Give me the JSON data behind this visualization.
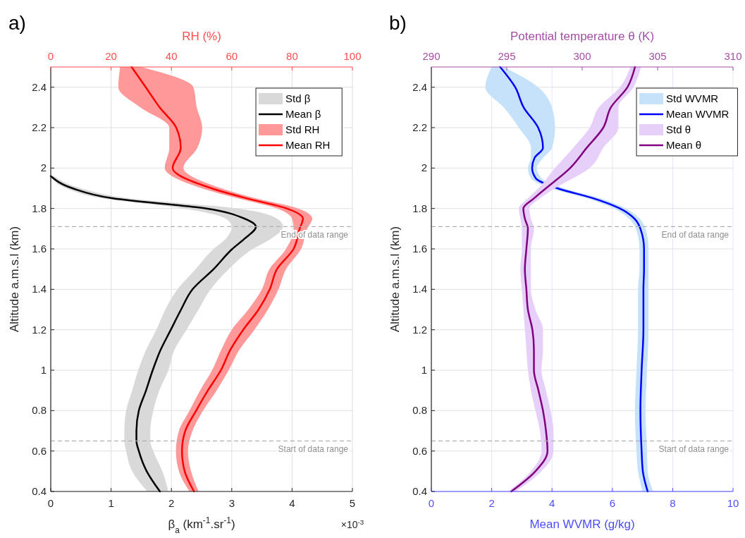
{
  "chart_data": [
    {
      "type": "line",
      "title": "a)",
      "orientation": "horizontal",
      "xlabel": "β$_{a}$ (km$^{-1}$.sr$^{-1}$)",
      "x2label": "RH (%)",
      "ylabel": "Altitude a.m.s.l (km)",
      "xlim": [
        0,
        5
      ],
      "xticks": [
        0,
        1,
        2,
        3,
        4,
        5
      ],
      "x2lim": [
        0,
        100
      ],
      "x2ticks": [
        0,
        20,
        40,
        60,
        80,
        100
      ],
      "ylim": [
        0.4,
        2.5
      ],
      "yticks": [
        0.4,
        0.6,
        0.8,
        1,
        1.2,
        1.4,
        1.6,
        1.8,
        2,
        2.2,
        2.4
      ],
      "grid": true,
      "legend": "top right",
      "annotations": [
        "×10$^{-3}$"
      ],
      "ref_lines": [
        {
          "axis": "y",
          "value": 1.71,
          "label": "End of data range",
          "color": "#b0b0b0",
          "line_style": "dashed"
        },
        {
          "axis": "y",
          "value": 0.65,
          "label": "Start of data range",
          "color": "#b0b0b0",
          "line_style": "dashed"
        }
      ],
      "series": [
        {
          "type": "area",
          "name": "Std β",
          "color": "#d9d9d9"
        },
        {
          "type": "line",
          "name": "Mean β",
          "color": "#000000",
          "x": [
            0.4,
            0.5,
            0.6,
            0.65,
            0.7,
            0.8,
            0.9,
            1.0,
            1.1,
            1.2,
            1.3,
            1.4,
            1.5,
            1.6,
            1.65,
            1.71,
            1.75,
            1.8,
            1.85,
            1.9,
            1.96
          ],
          "values": [
            1.81,
            1.59,
            1.46,
            1.42,
            1.42,
            1.46,
            1.58,
            1.69,
            1.82,
            1.99,
            2.16,
            2.35,
            2.7,
            3.01,
            3.21,
            3.4,
            3.21,
            2.58,
            1.03,
            0.36,
            0
          ],
          "lower": [
            1.6,
            1.35,
            1.25,
            1.22,
            1.22,
            1.25,
            1.35,
            1.45,
            1.58,
            1.75,
            1.9,
            2.1,
            2.4,
            2.7,
            2.9,
            3.0,
            2.9,
            2.2,
            0.85,
            0.25,
            0
          ],
          "upper": [
            1.95,
            1.85,
            1.7,
            1.65,
            1.65,
            1.7,
            1.8,
            1.95,
            2.05,
            2.25,
            2.45,
            2.65,
            2.95,
            3.35,
            3.65,
            3.85,
            3.75,
            3.1,
            1.3,
            0.5,
            0.05
          ]
        },
        {
          "type": "area",
          "name": "Std RH",
          "color": "#ff9999",
          "axis": "x2"
        },
        {
          "type": "line",
          "name": "Mean RH",
          "color": "#ff0000",
          "axis": "x2",
          "x": [
            0.4,
            0.5,
            0.6,
            0.7,
            0.8,
            0.9,
            1.0,
            1.1,
            1.2,
            1.3,
            1.4,
            1.5,
            1.6,
            1.7,
            1.75,
            1.8,
            1.85,
            1.9,
            2.0,
            2.1,
            2.2,
            2.3,
            2.4,
            2.5
          ],
          "values": [
            47.5,
            44.4,
            43.5,
            44.6,
            48.2,
            52.1,
            56.4,
            59.5,
            63.8,
            68.9,
            72.6,
            75,
            80.5,
            82.5,
            83.6,
            78.2,
            65,
            53.3,
            40.4,
            43.1,
            41.6,
            36.1,
            31.5,
            26.8
          ],
          "lower": [
            46,
            42.5,
            41.5,
            42.5,
            46,
            49.5,
            53.5,
            56.5,
            60,
            65.5,
            70,
            72.5,
            78,
            80.5,
            80,
            75,
            62,
            50,
            37.8,
            39.3,
            39.3,
            29.7,
            22.4,
            23
          ],
          "upper": [
            49,
            46.5,
            45.5,
            47,
            50.5,
            55,
            59,
            62.5,
            67.5,
            72,
            75.5,
            78,
            83,
            85,
            86.7,
            82,
            68,
            56.5,
            44,
            48.6,
            50.2,
            48.4,
            47.3,
            30
          ]
        }
      ]
    },
    {
      "type": "line",
      "title": "b)",
      "orientation": "horizontal",
      "xlabel": "Mean WVMR (g/kg)",
      "x2label": "Potential temperature θ (K)",
      "ylabel": "Altitude a.m.s.l (km)",
      "xlim": [
        0,
        10
      ],
      "xticks": [
        0,
        2,
        4,
        6,
        8,
        10
      ],
      "x2lim": [
        290,
        310
      ],
      "x2ticks": [
        290,
        295,
        300,
        305,
        310
      ],
      "ylim": [
        0.4,
        2.5
      ],
      "yticks": [
        0.4,
        0.6,
        0.8,
        1,
        1.2,
        1.4,
        1.6,
        1.8,
        2,
        2.2,
        2.4
      ],
      "grid": true,
      "legend": "top right",
      "ref_lines": [
        {
          "axis": "y",
          "value": 1.71,
          "label": "End of data range",
          "color": "#b0b0b0",
          "line_style": "dashed"
        },
        {
          "axis": "y",
          "value": 0.65,
          "label": "Start of data range",
          "color": "#b0b0b0",
          "line_style": "dashed"
        }
      ],
      "series": [
        {
          "type": "area",
          "name": "Std WVMR",
          "color": "#c6e2fb"
        },
        {
          "type": "line",
          "name": "Mean WVMR",
          "color": "#0000ff",
          "x": [
            0.4,
            0.5,
            0.6,
            0.8,
            1.0,
            1.2,
            1.4,
            1.5,
            1.6,
            1.7,
            1.75,
            1.8,
            1.85,
            1.9,
            1.95,
            2.0,
            2.05,
            2.1,
            2.2,
            2.3,
            2.4,
            2.5
          ],
          "values": [
            7.17,
            7.01,
            6.97,
            6.93,
            6.97,
            7.03,
            7.03,
            7.05,
            7.05,
            6.93,
            6.73,
            6.25,
            5.38,
            4.18,
            3.46,
            3.34,
            3.42,
            3.7,
            3.54,
            3.06,
            2.78,
            2.28
          ],
          "lower": [
            7.0,
            6.85,
            6.8,
            6.75,
            6.8,
            6.85,
            6.85,
            6.9,
            6.9,
            6.78,
            6.55,
            6.05,
            5.15,
            3.95,
            3.3,
            3.2,
            3.3,
            3.3,
            2.9,
            2.4,
            1.79,
            2.0
          ],
          "upper": [
            7.35,
            7.17,
            7.15,
            7.1,
            7.15,
            7.2,
            7.2,
            7.2,
            7.2,
            7.1,
            6.9,
            6.45,
            5.6,
            4.4,
            3.65,
            3.5,
            3.7,
            4.0,
            4.1,
            4.0,
            3.54,
            2.4
          ]
        },
        {
          "type": "area",
          "name": "Std θ",
          "color": "#e6d0fa",
          "axis": "x2"
        },
        {
          "type": "line",
          "name": "Mean θ",
          "color": "#800080",
          "axis": "x2",
          "x": [
            0.4,
            0.5,
            0.6,
            0.7,
            0.8,
            0.9,
            1.0,
            1.1,
            1.2,
            1.3,
            1.4,
            1.5,
            1.6,
            1.7,
            1.75,
            1.8,
            1.85,
            1.9,
            2.0,
            2.1,
            2.2,
            2.3,
            2.4,
            2.5
          ],
          "values": [
            295.3,
            296.9,
            297.7,
            297.6,
            297.4,
            297.1,
            296.8,
            296.8,
            296.7,
            296.4,
            296.3,
            296.2,
            296.3,
            296.4,
            296.2,
            296.1,
            296.8,
            297.6,
            299.2,
            300.3,
            301.4,
            301.9,
            303.0,
            303.5
          ],
          "lower": [
            295.1,
            296.6,
            297.3,
            297.2,
            296.9,
            296.6,
            296.4,
            296.3,
            296.2,
            296.1,
            296.0,
            295.9,
            296.0,
            296.0,
            295.9,
            295.8,
            296.4,
            297.1,
            298.2,
            299.4,
            300.5,
            301.1,
            302.5,
            303.2
          ],
          "upper": [
            295.6,
            297.3,
            298.1,
            298.1,
            297.9,
            297.6,
            297.3,
            297.4,
            297.4,
            296.9,
            296.6,
            296.6,
            296.6,
            296.8,
            296.6,
            296.5,
            297.2,
            298.2,
            300.5,
            301.4,
            302.4,
            302.4,
            303.4,
            303.9
          ]
        }
      ]
    }
  ]
}
